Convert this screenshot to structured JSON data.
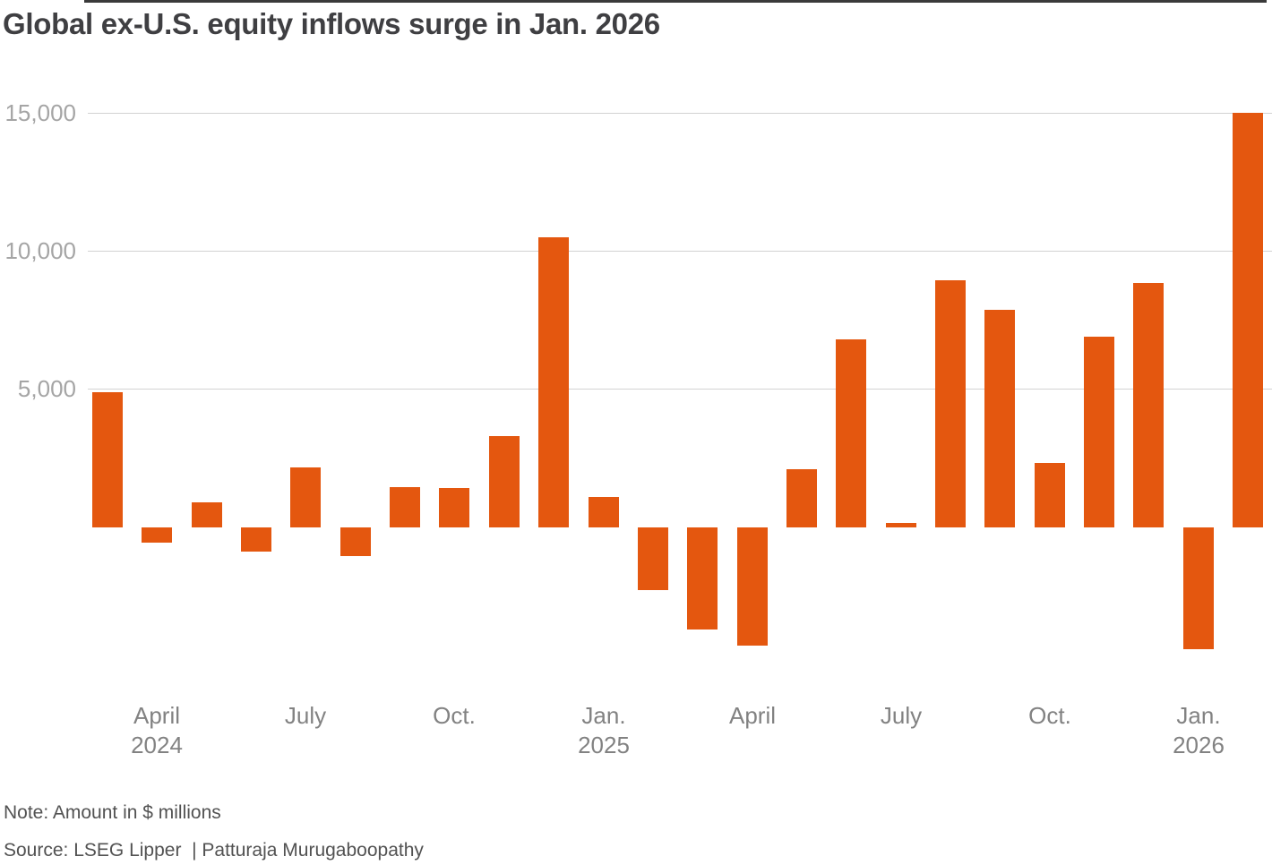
{
  "chart_data": {
    "type": "bar",
    "title": "Global ex-U.S. equity inflows surge in Jan. 2026",
    "note": "Note: Amount in $ millions",
    "source": "Source: LSEG Lipper  | Patturaja Murugaboopathy",
    "unit": "$ millions",
    "grid": true,
    "legend_position": "none",
    "ylim": [
      -5000,
      15500
    ],
    "yticks": [
      {
        "value": 5000,
        "label": "5,000"
      },
      {
        "value": 10000,
        "label": "10,000"
      },
      {
        "value": 15000,
        "label": "15,000"
      }
    ],
    "values": [
      4900,
      -550,
      900,
      -860,
      2160,
      -1040,
      1460,
      1430,
      3300,
      10500,
      1100,
      -2280,
      -3700,
      -4270,
      2100,
      6800,
      150,
      8950,
      7870,
      2330,
      6900,
      8840,
      -4400,
      15000
    ],
    "xticks": [
      {
        "index": 1,
        "lines": [
          "April",
          "2024"
        ]
      },
      {
        "index": 4,
        "lines": [
          "July"
        ]
      },
      {
        "index": 7,
        "lines": [
          "Oct."
        ]
      },
      {
        "index": 10,
        "lines": [
          "Jan.",
          "2025"
        ]
      },
      {
        "index": 13,
        "lines": [
          "April"
        ]
      },
      {
        "index": 16,
        "lines": [
          "July"
        ]
      },
      {
        "index": 19,
        "lines": [
          "Oct."
        ]
      },
      {
        "index": 22,
        "lines": [
          "Jan.",
          "2026"
        ]
      }
    ],
    "colors": {
      "bar": "#e4570f",
      "gridline": "#d2d2d2",
      "zero_line": "#3a3a3a",
      "ytick_text": "#a5a5a5",
      "xtick_text": "#828282",
      "title_text": "#3f3f42",
      "footnote_text": "#525252"
    }
  }
}
